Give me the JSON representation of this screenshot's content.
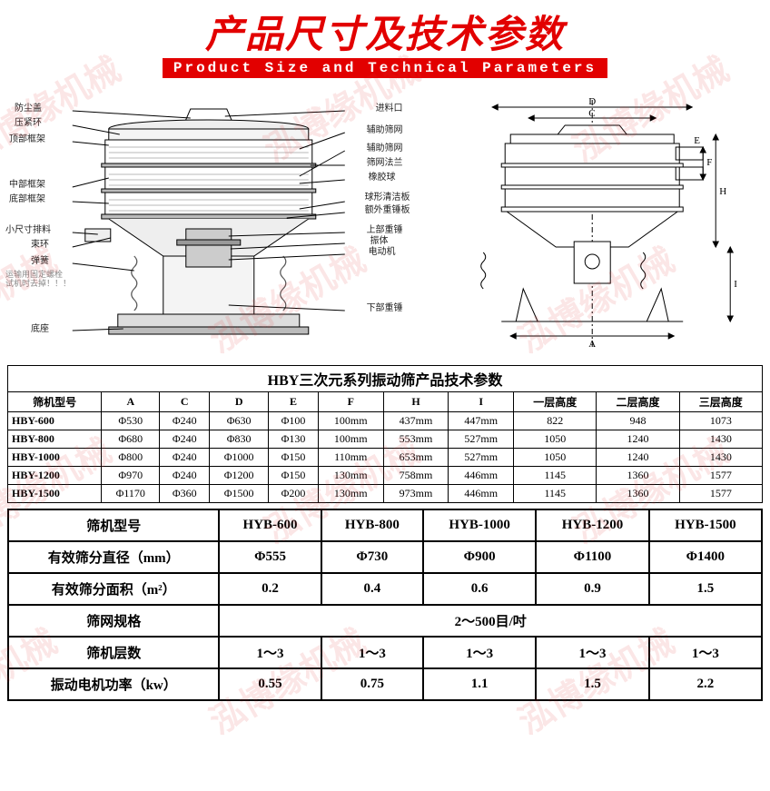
{
  "header": {
    "title_cn": "产品尺寸及技术参数",
    "subtitle_en": "Product Size and Technical Parameters",
    "title_color": "#e20000",
    "subtitle_bg": "#e20000",
    "subtitle_fg": "#ffffff"
  },
  "watermark_text": "泓博缘机械",
  "diagram_left": {
    "labels": [
      "防尘盖",
      "压紧环",
      "顶部框架",
      "中部框架",
      "底部框架",
      "小尺寸排料",
      "束环",
      "弹簧",
      "底座",
      "进料口",
      "辅助筛网",
      "辅助筛网",
      "筛网法兰",
      "橡胶球",
      "球形清洁板",
      "额外重锤板",
      "上部重锤",
      "振体",
      "电动机",
      "下部重锤"
    ],
    "note": "运输用固定螺栓\n试机时去掉！！！"
  },
  "diagram_right": {
    "dim_labels": [
      "A",
      "C",
      "D",
      "E",
      "F",
      "H",
      "I"
    ]
  },
  "table1": {
    "caption": "HBY三次元系列振动筛产品技术参数",
    "headers": [
      "筛机型号",
      "A",
      "C",
      "D",
      "E",
      "F",
      "H",
      "I",
      "一层高度",
      "二层高度",
      "三层高度"
    ],
    "rows": [
      [
        "HBY-600",
        "Φ530",
        "Φ240",
        "Φ630",
        "Φ100",
        "100mm",
        "437mm",
        "447mm",
        "822",
        "948",
        "1073"
      ],
      [
        "HBY-800",
        "Φ680",
        "Φ240",
        "Φ830",
        "Φ130",
        "100mm",
        "553mm",
        "527mm",
        "1050",
        "1240",
        "1430"
      ],
      [
        "HBY-1000",
        "Φ800",
        "Φ240",
        "Φ1000",
        "Φ150",
        "110mm",
        "653mm",
        "527mm",
        "1050",
        "1240",
        "1430"
      ],
      [
        "HBY-1200",
        "Φ970",
        "Φ240",
        "Φ1200",
        "Φ150",
        "130mm",
        "758mm",
        "446mm",
        "1145",
        "1360",
        "1577"
      ],
      [
        "HBY-1500",
        "Φ1170",
        "Φ360",
        "Φ1500",
        "Φ200",
        "130mm",
        "973mm",
        "446mm",
        "1145",
        "1360",
        "1577"
      ]
    ]
  },
  "table2": {
    "headers": [
      "筛机型号",
      "HYB-600",
      "HYB-800",
      "HYB-1000",
      "HYB-1200",
      "HYB-1500"
    ],
    "rows": [
      {
        "label": "有效筛分直径（mm）",
        "cells": [
          "Φ555",
          "Φ730",
          "Φ900",
          "Φ1100",
          "Φ1400"
        ]
      },
      {
        "label": "有效筛分面积（m²）",
        "cells": [
          "0.2",
          "0.4",
          "0.6",
          "0.9",
          "1.5"
        ]
      },
      {
        "label": "筛网规格",
        "span": true,
        "value": "2～500目/吋"
      },
      {
        "label": "筛机层数",
        "cells": [
          "1～3",
          "1～3",
          "1～3",
          "1～3",
          "1～3"
        ]
      },
      {
        "label": "振动电机功率（kw）",
        "cells": [
          "0.55",
          "0.75",
          "1.1",
          "1.5",
          "2.2"
        ]
      }
    ]
  }
}
